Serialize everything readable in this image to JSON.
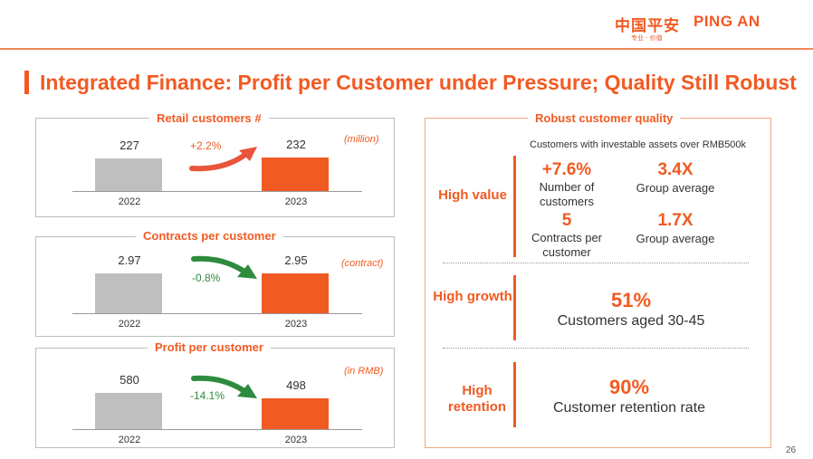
{
  "header": {
    "logo_cn": "中国平安",
    "logo_en": "PING AN",
    "logo_sub": "专业 · 价值",
    "title": "Integrated Finance: Profit per Customer under Pressure; Quality Still Robust"
  },
  "chart_data": [
    {
      "type": "bar",
      "title": "Retail customers #",
      "unit": "(million)",
      "categories": [
        "2022",
        "2023"
      ],
      "values": [
        227,
        232
      ],
      "value_labels": [
        "227",
        "232"
      ],
      "change": "+2.2%",
      "change_direction": "up"
    },
    {
      "type": "bar",
      "title": "Contracts per customer",
      "unit": "(contract)",
      "categories": [
        "2022",
        "2023"
      ],
      "values": [
        2.97,
        2.95
      ],
      "value_labels": [
        "2.97",
        "2.95"
      ],
      "change": "-0.8%",
      "change_direction": "down"
    },
    {
      "type": "bar",
      "title": "Profit per customer",
      "unit": "(in RMB)",
      "categories": [
        "2022",
        "2023"
      ],
      "values": [
        580,
        498
      ],
      "value_labels": [
        "580",
        "498"
      ],
      "change": "-14.1%",
      "change_direction": "down"
    }
  ],
  "colors": {
    "accent": "#f15a22",
    "bar_2022": "#bfbfbf",
    "bar_2023": "#f15a22",
    "negative": "#2e8b3e"
  },
  "quality": {
    "title": "Robust customer quality",
    "note": "Customers with investable assets over RMB500k",
    "high_value": {
      "label": "High value",
      "m1_value": "+7.6%",
      "m1_desc": "Number of customers",
      "m2_value": "3.4X",
      "m2_desc": "Group average",
      "m3_value": "5",
      "m3_desc": "Contracts per customer",
      "m4_value": "1.7X",
      "m4_desc": "Group average"
    },
    "high_growth": {
      "label": "High growth",
      "value": "51%",
      "desc": "Customers aged 30-45"
    },
    "high_retention": {
      "label": "High retention",
      "value": "90%",
      "desc": "Customer retention rate"
    }
  },
  "page_number": "26"
}
